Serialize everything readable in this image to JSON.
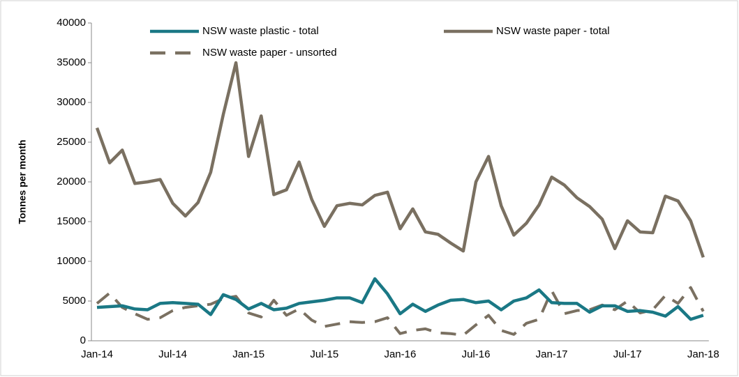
{
  "chart_data": {
    "type": "line",
    "y_label": "Tonnes per month",
    "categories": [
      "Jan-14",
      null,
      null,
      null,
      null,
      null,
      "Jul-14",
      null,
      null,
      null,
      null,
      null,
      "Jan-15",
      null,
      null,
      null,
      null,
      null,
      "Jul-15",
      null,
      null,
      null,
      null,
      null,
      "Jan-16",
      null,
      null,
      null,
      null,
      null,
      "Jul-16",
      null,
      null,
      null,
      null,
      null,
      "Jan-17",
      null,
      null,
      null,
      null,
      null,
      "Jul-17",
      null,
      null,
      null,
      null,
      null,
      "Jan-18"
    ],
    "series": [
      {
        "name": "NSW waste plastic - total",
        "color": "#1a7885",
        "dashed": false,
        "values": [
          4200,
          4300,
          4400,
          4000,
          3900,
          4700,
          4800,
          4700,
          4600,
          3300,
          5800,
          5200,
          4000,
          4700,
          3900,
          4100,
          4700,
          4900,
          5100,
          5400,
          5400,
          4800,
          7800,
          5900,
          3400,
          4600,
          3700,
          4500,
          5100,
          5200,
          4800,
          5000,
          3900,
          5000,
          5400,
          6400,
          4800,
          4700,
          4700,
          3600,
          4400,
          4400,
          3700,
          3800,
          3600,
          3100,
          4300,
          2700,
          3200
        ]
      },
      {
        "name": "NSW waste paper - total",
        "color": "#7a7061",
        "dashed": false,
        "values": [
          26800,
          22400,
          24000,
          19800,
          20000,
          20300,
          17300,
          15700,
          17400,
          21200,
          28500,
          35000,
          23200,
          28300,
          18400,
          19000,
          22500,
          17800,
          14400,
          17000,
          17300,
          17100,
          18300,
          18700,
          14100,
          16600,
          13700,
          13400,
          12300,
          11300,
          20000,
          23200,
          17000,
          13300,
          14800,
          17100,
          20600,
          19600,
          18000,
          16900,
          15300,
          11600,
          15100,
          13700,
          13600,
          18200,
          17600,
          15100,
          10500
        ]
      },
      {
        "name": "NSW waste paper - unsorted",
        "color": "#7a7061",
        "dashed": true,
        "values": [
          4700,
          6000,
          4200,
          3400,
          2700,
          2900,
          3800,
          4200,
          4400,
          4600,
          5300,
          5600,
          3500,
          3000,
          5100,
          3200,
          4000,
          2600,
          1800,
          2100,
          2400,
          2300,
          2400,
          2900,
          900,
          1300,
          1500,
          1000,
          900,
          700,
          2000,
          3200,
          1300,
          800,
          2200,
          2700,
          6300,
          3400,
          3800,
          3900,
          4500,
          3900,
          5000,
          3500,
          3900,
          5700,
          4700,
          6700,
          3700
        ]
      }
    ],
    "ylim": [
      0,
      40000
    ],
    "yticks": [
      0,
      5000,
      10000,
      15000,
      20000,
      25000,
      30000,
      35000,
      40000
    ]
  }
}
